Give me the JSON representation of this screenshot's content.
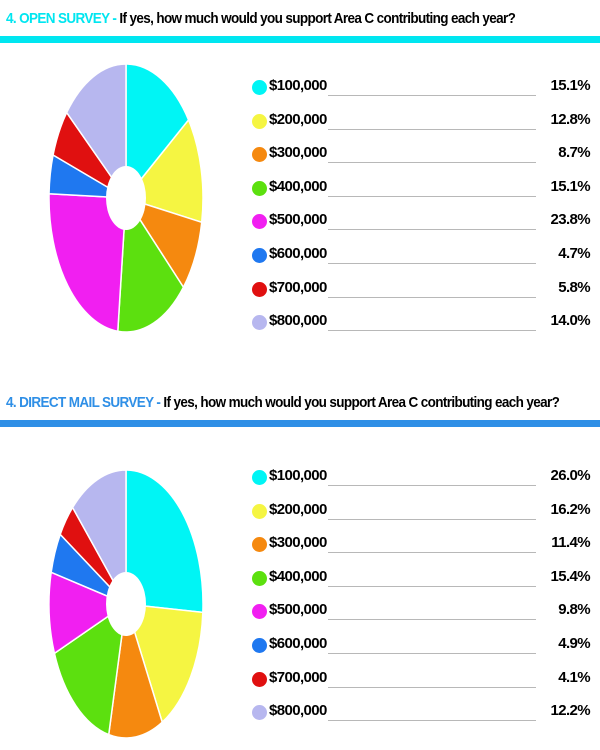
{
  "chart_data": [
    {
      "type": "pie",
      "title_prefix": "4. OPEN SURVEY -",
      "title": "If yes, how much would you support Area C contributing each year?",
      "accent_color": "#00e6f0",
      "categories": [
        "$100,000",
        "$200,000",
        "$300,000",
        "$400,000",
        "$500,000",
        "$600,000",
        "$700,000",
        "$800,000"
      ],
      "values": [
        15.1,
        12.8,
        8.7,
        15.1,
        23.8,
        4.7,
        5.8,
        14.0
      ],
      "value_labels": [
        "15.1%",
        "12.8%",
        "8.7%",
        "15.1%",
        "23.8%",
        "4.7%",
        "5.8%",
        "14.0%"
      ],
      "colors": [
        "#00f5f5",
        "#f5f542",
        "#f5890f",
        "#5ce00f",
        "#f11ff1",
        "#1f78f0",
        "#e01010",
        "#b7b7ef"
      ],
      "legend_placement": "right",
      "donut_hole": true
    },
    {
      "type": "pie",
      "title_prefix": "4. DIRECT MAIL SURVEY -",
      "title": "If yes, how much would you support Area C contributing each year?",
      "accent_color": "#2f8fe6",
      "categories": [
        "$100,000",
        "$200,000",
        "$300,000",
        "$400,000",
        "$500,000",
        "$600,000",
        "$700,000",
        "$800,000"
      ],
      "values": [
        26.0,
        16.2,
        11.4,
        15.4,
        9.8,
        4.9,
        4.1,
        12.2
      ],
      "value_labels": [
        "26.0%",
        "16.2%",
        "11.4%",
        "15.4%",
        "9.8%",
        "4.9%",
        "4.1%",
        "12.2%"
      ],
      "colors": [
        "#00f5f5",
        "#f5f542",
        "#f5890f",
        "#5ce00f",
        "#f11ff1",
        "#1f78f0",
        "#e01010",
        "#b7b7ef"
      ],
      "legend_placement": "right",
      "donut_hole": true
    }
  ]
}
